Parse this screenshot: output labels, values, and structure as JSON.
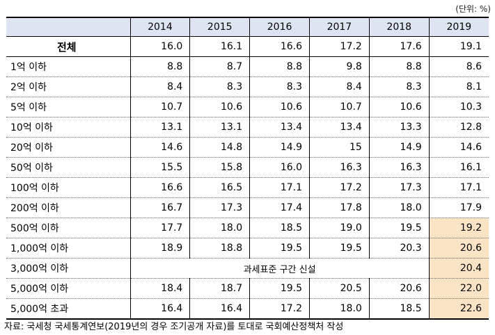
{
  "unit_label": "(단위: %)",
  "table": {
    "header": [
      "",
      "2014",
      "2015",
      "2016",
      "2017",
      "2018",
      "2019"
    ],
    "rows": [
      {
        "label": "전체",
        "values": [
          "16.0",
          "16.1",
          "16.6",
          "17.2",
          "17.6",
          "19.1"
        ]
      },
      {
        "label": "1억 이하",
        "values": [
          "8.8",
          "8.7",
          "8.8",
          "9.8",
          "8.8",
          "8.6"
        ]
      },
      {
        "label": "2억 이하",
        "values": [
          "8.4",
          "8.3",
          "8.3",
          "8.4",
          "8.3",
          "8.1"
        ]
      },
      {
        "label": "5억 이하",
        "values": [
          "10.7",
          "10.6",
          "10.6",
          "10.7",
          "10.6",
          "10.3"
        ]
      },
      {
        "label": "10억 이하",
        "values": [
          "13.1",
          "13.1",
          "13.4",
          "13.4",
          "13.3",
          "12.8"
        ]
      },
      {
        "label": "20억 이하",
        "values": [
          "14.6",
          "14.8",
          "14.9",
          "15",
          "14.9",
          "14.6"
        ]
      },
      {
        "label": "50억 이하",
        "values": [
          "15.5",
          "15.8",
          "16.0",
          "16.3",
          "16.3",
          "16.1"
        ]
      },
      {
        "label": "100억 이하",
        "values": [
          "16.6",
          "16.5",
          "17.1",
          "17.2",
          "17.3",
          "17.1"
        ]
      },
      {
        "label": "200억 이하",
        "values": [
          "16.7",
          "17.3",
          "17.4",
          "17.8",
          "18.0",
          "17.9"
        ]
      },
      {
        "label": "500억 이하",
        "values": [
          "17.7",
          "18.0",
          "18.5",
          "19.0",
          "19.5",
          "19.2"
        ]
      },
      {
        "label": "1,000억 이하",
        "values": [
          "18.9",
          "18.8",
          "19.5",
          "19.5",
          "20.3",
          "20.6"
        ]
      },
      {
        "label": "3,000억 이하",
        "merged_text": "과세표준 구간 신설",
        "values": [
          "20.4"
        ]
      },
      {
        "label": "5,000억 이하",
        "values": [
          "18.4",
          "18.7",
          "19.5",
          "20.5",
          "20.6",
          "22.0"
        ]
      },
      {
        "label": "5,000억 초과",
        "values": [
          "16.4",
          "16.4",
          "17.2",
          "18.0",
          "18.5",
          "22.6"
        ]
      }
    ]
  },
  "source_note": "자료: 국세청 국세통계연보(2019년의 경우 조기공개 자료)를 토대로 국회예산정책처 작성",
  "colors": {
    "header_bg": "#dfe4f2",
    "highlight_bg": "#fbe4c6"
  }
}
